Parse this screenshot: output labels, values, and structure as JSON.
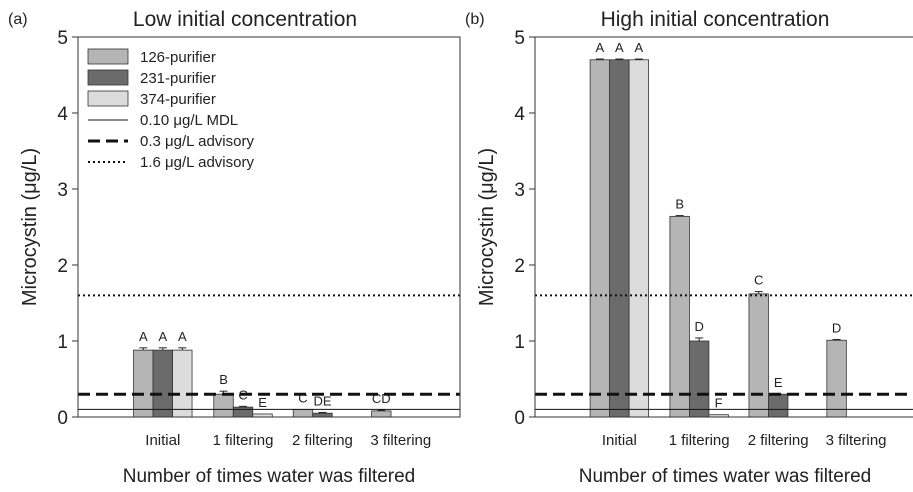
{
  "chart_data": [
    {
      "type": "bar",
      "panel_label": "(a)",
      "title": "Low initial concentration",
      "xlabel": "Number of times water was filtered",
      "ylabel": "Microcystin (μg/L)",
      "ylim": [
        0,
        5
      ],
      "yticks": [
        "0",
        "1",
        "2",
        "3",
        "4",
        "5"
      ],
      "categories": [
        "Initial",
        "1 filtering",
        "2 filtering",
        "3 filtering"
      ],
      "series": [
        {
          "name": "126-purifier",
          "color": "#b5b5b5",
          "values": [
            0.88,
            0.3,
            0.1,
            0.08
          ],
          "errors": [
            0.03,
            0.04,
            0.0,
            0.01
          ],
          "labels": [
            "A",
            "B",
            "C",
            "CD"
          ]
        },
        {
          "name": "231-purifier",
          "color": "#6b6b6b",
          "values": [
            0.88,
            0.13,
            0.05,
            0.0
          ],
          "errors": [
            0.03,
            0.01,
            0.01,
            0.0
          ],
          "labels": [
            "A",
            "C",
            "DE",
            ""
          ]
        },
        {
          "name": "374-purifier",
          "color": "#dcdcdc",
          "values": [
            0.88,
            0.04,
            0.0,
            0.0
          ],
          "errors": [
            0.03,
            0.0,
            0.0,
            0.0
          ],
          "labels": [
            "A",
            "E",
            "",
            ""
          ]
        }
      ],
      "reference_lines": [
        {
          "name": "0.10 μg/L MDL",
          "value": 0.1,
          "style": "solid"
        },
        {
          "name": "0.3 μg/L advisory",
          "value": 0.3,
          "style": "dashed"
        },
        {
          "name": "1.6 μg/L advisory",
          "value": 1.6,
          "style": "dotted"
        }
      ],
      "legend": "top-left"
    },
    {
      "type": "bar",
      "panel_label": "(b)",
      "title": "High initial concentration",
      "xlabel": "Number of times water was filtered",
      "ylabel": "Microcystin (μg/L)",
      "ylim": [
        0,
        5
      ],
      "yticks": [
        "0",
        "1",
        "2",
        "3",
        "4",
        "5"
      ],
      "categories": [
        "Initial",
        "1 filtering",
        "2 filtering",
        "3 filtering"
      ],
      "series": [
        {
          "name": "126-purifier",
          "color": "#b5b5b5",
          "values": [
            4.7,
            2.64,
            1.62,
            1.01
          ],
          "errors": [
            0.01,
            0.01,
            0.03,
            0.01
          ],
          "labels": [
            "A",
            "B",
            "C",
            "D"
          ]
        },
        {
          "name": "231-purifier",
          "color": "#6b6b6b",
          "values": [
            4.7,
            1.0,
            0.3,
            0.0
          ],
          "errors": [
            0.01,
            0.04,
            0.0,
            0.0
          ],
          "labels": [
            "A",
            "D",
            "E",
            ""
          ]
        },
        {
          "name": "374-purifier",
          "color": "#dcdcdc",
          "values": [
            4.7,
            0.03,
            0.0,
            0.0
          ],
          "errors": [
            0.01,
            0.0,
            0.0,
            0.0
          ],
          "labels": [
            "A",
            "F",
            "",
            ""
          ]
        }
      ],
      "reference_lines": [
        {
          "name": "0.10 μg/L MDL",
          "value": 0.1,
          "style": "solid"
        },
        {
          "name": "0.3 μg/L advisory",
          "value": 0.3,
          "style": "dashed"
        },
        {
          "name": "1.6 μg/L advisory",
          "value": 1.6,
          "style": "dotted"
        }
      ]
    }
  ]
}
